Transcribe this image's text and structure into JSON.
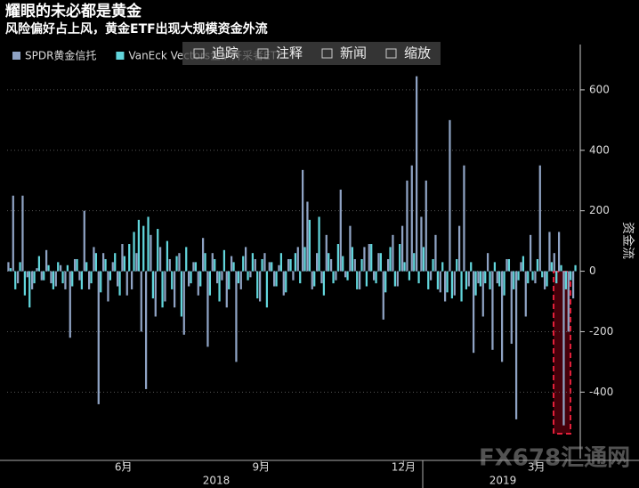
{
  "chart_data": {
    "type": "bar",
    "title": "耀眼的未必都是黄金",
    "subtitle": "风险偏好占上风，黄金ETF出现大规模资金外流",
    "y_axis_label": "资金流",
    "categories": [
      null,
      null,
      null,
      null,
      null,
      null,
      null,
      null,
      null,
      null,
      null,
      null,
      null,
      null,
      null,
      null,
      null,
      null,
      null,
      null,
      null,
      null,
      null,
      null,
      "6月",
      null,
      null,
      null,
      null,
      null,
      null,
      null,
      null,
      null,
      null,
      null,
      null,
      null,
      null,
      null,
      null,
      null,
      null,
      null,
      null,
      null,
      null,
      null,
      null,
      null,
      null,
      null,
      null,
      "9月",
      null,
      null,
      null,
      null,
      null,
      null,
      null,
      null,
      null,
      null,
      null,
      null,
      null,
      null,
      null,
      null,
      null,
      null,
      null,
      null,
      null,
      null,
      null,
      null,
      null,
      null,
      null,
      null,
      null,
      "12月",
      null,
      null,
      null,
      null,
      null,
      null,
      null,
      null,
      null,
      null,
      null,
      null,
      null,
      null,
      null,
      null,
      null,
      null,
      null,
      null,
      null,
      null,
      null,
      null,
      null,
      null,
      null,
      "3月",
      null,
      null,
      null,
      null,
      null,
      null,
      null,
      null
    ],
    "year_labels": [
      "2018",
      "2019"
    ],
    "series": [
      {
        "name": "SPDR黄金信托",
        "color": "#8fa3c4",
        "values": [
          30,
          250,
          -40,
          250,
          -20,
          -60,
          10,
          -30,
          70,
          -40,
          -50,
          20,
          -60,
          -220,
          40,
          -30,
          200,
          -60,
          80,
          -440,
          60,
          -100,
          30,
          -50,
          90,
          -80,
          -60,
          60,
          -200,
          -390,
          120,
          -150,
          80,
          -100,
          40,
          -120,
          60,
          -210,
          -50,
          30,
          -80,
          110,
          -250,
          60,
          -40,
          -30,
          -120,
          50,
          -300,
          -60,
          80,
          -20,
          40,
          -100,
          60,
          30,
          -50,
          20,
          -80,
          40,
          -30,
          80,
          335,
          230,
          -60,
          60,
          -40,
          120,
          40,
          -30,
          270,
          -20,
          150,
          40,
          -60,
          80,
          90,
          -30,
          60,
          -160,
          40,
          120,
          -50,
          150,
          300,
          350,
          645,
          180,
          300,
          -30,
          120,
          -70,
          -100,
          500,
          -80,
          150,
          350,
          -50,
          -270,
          -40,
          -150,
          60,
          -260,
          -40,
          -300,
          40,
          -240,
          -490,
          30,
          -150,
          120,
          -40,
          350,
          -60,
          130,
          60,
          130,
          -510,
          -200,
          -90
        ]
      },
      {
        "name": "VanEck Vectors金矿开采者ETF",
        "color": "#62d6dc",
        "values": [
          10,
          -60,
          30,
          -80,
          -120,
          -40,
          50,
          -30,
          20,
          -60,
          30,
          -40,
          20,
          -50,
          40,
          -60,
          30,
          -40,
          60,
          -70,
          40,
          -30,
          60,
          -80,
          50,
          90,
          130,
          170,
          150,
          180,
          -90,
          140,
          -120,
          100,
          -60,
          50,
          -150,
          80,
          -40,
          30,
          -50,
          60,
          -80,
          40,
          -100,
          70,
          -60,
          30,
          -40,
          50,
          -30,
          60,
          -90,
          40,
          -120,
          30,
          -50,
          60,
          -70,
          40,
          60,
          -40,
          80,
          170,
          -50,
          180,
          -80,
          60,
          -40,
          90,
          50,
          -30,
          80,
          -60,
          40,
          -50,
          90,
          -40,
          60,
          -70,
          80,
          -50,
          90,
          30,
          -30,
          60,
          -40,
          80,
          -60,
          40,
          -60,
          30,
          -70,
          -90,
          40,
          -100,
          -60,
          30,
          -80,
          -50,
          -40,
          -60,
          30,
          -50,
          -80,
          40,
          -60,
          -30,
          50,
          -40,
          -30,
          40,
          -20,
          -50,
          30,
          -40,
          20,
          -60,
          -30,
          20
        ]
      }
    ],
    "ylim": [
      -620,
      750
    ],
    "yticks": [
      -400,
      -200,
      0,
      200,
      400,
      600
    ],
    "grid": true
  },
  "toolbar": [
    "追踪",
    "注释",
    "新闻",
    "缩放"
  ],
  "watermark": "FX678汇通网"
}
